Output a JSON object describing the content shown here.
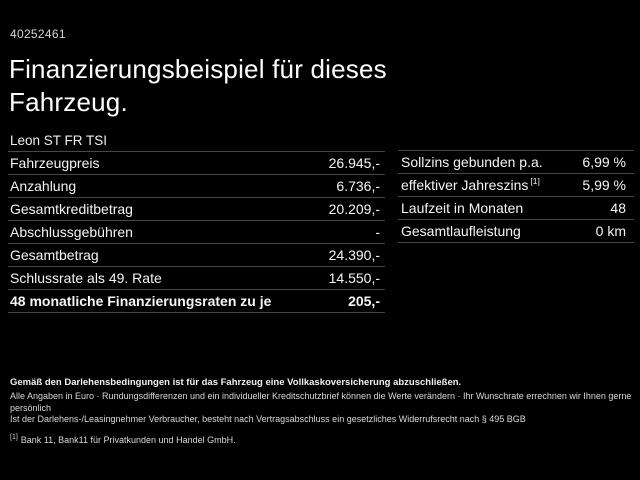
{
  "meta": {
    "doc_number": "40252461"
  },
  "header": {
    "title_line1": "Finanzierungsbeispiel für dieses",
    "title_line2": "Fahrzeug.",
    "model": "Leon ST FR TSI"
  },
  "tables": {
    "left": {
      "rows": [
        {
          "label": "Fahrzeugpreis",
          "value": "26.945,-"
        },
        {
          "label": "Anzahlung",
          "value": "6.736,-"
        },
        {
          "label": "Gesamtkreditbetrag",
          "value": "20.209,-"
        },
        {
          "label": "Abschlussgebühren",
          "value": "-"
        },
        {
          "label": "Gesamtbetrag",
          "value": "24.390,-"
        },
        {
          "label": "Schlussrate als 49. Rate",
          "value": "14.550,-"
        },
        {
          "label": "48 monatliche Finanzierungsraten zu je",
          "value": "205,-"
        }
      ]
    },
    "right": {
      "rows": [
        {
          "label": "Sollzins gebunden p.a.",
          "sup": "",
          "value": "6,99 %"
        },
        {
          "label": "effektiver Jahreszins",
          "sup": "[1]",
          "value": "5,99 %"
        },
        {
          "label": "Laufzeit in Monaten",
          "sup": "",
          "value": "48"
        },
        {
          "label": "Gesamtlaufleistung",
          "sup": "",
          "value": "0 km"
        }
      ]
    }
  },
  "footer": {
    "bold_note": "Gemäß den Darlehensbedingungen ist für das Fahrzeug eine Vollkaskoversicherung abzuschließen.",
    "note1": "Alle Angaben in Euro · Rundungsdifferenzen und ein individueller Kreditschutzbrief können die Werte verändern · Ihr Wunschrate errechnen wir Ihnen gerne persönlich",
    "note2": "Ist der Darlehens-/Leasingnehmer Verbraucher, besteht nach Vertragsabschluss ein gesetzliches Widerrufsrecht nach § 495 BGB",
    "footnote_marker": "[1]",
    "footnote_text": "Bank 11, Bank11 für Privatkunden und Handel GmbH."
  },
  "colors": {
    "background": "#000000",
    "text": "#f5f5f5",
    "divider": "#484848"
  }
}
